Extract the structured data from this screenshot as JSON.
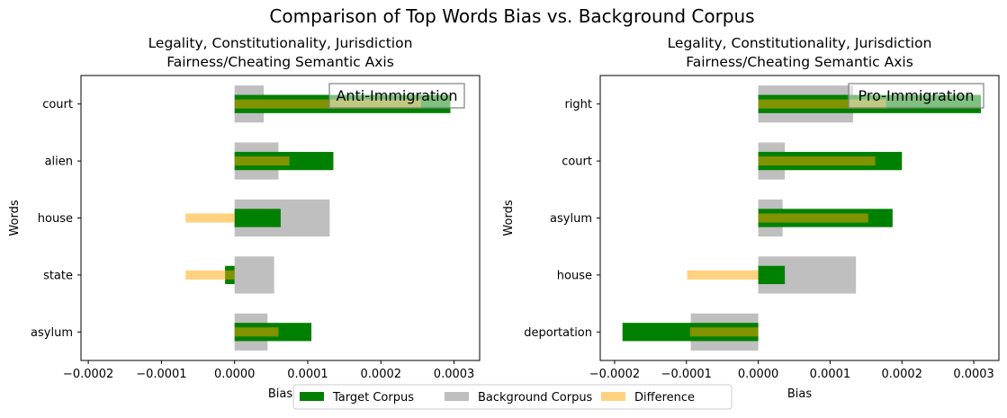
{
  "figure": {
    "suptitle": "Comparison of Top Words Bias vs. Background Corpus"
  },
  "legend": {
    "entries": [
      {
        "label": "Target Corpus",
        "color": "#008000",
        "opacity": 1
      },
      {
        "label": "Background Corpus",
        "color": "#808080",
        "opacity": 0.5
      },
      {
        "label": "Difference",
        "color": "#FFA500",
        "opacity": 0.5
      }
    ],
    "placement": "lower-center"
  },
  "chart_data": [
    {
      "type": "bar",
      "orientation": "horizontal",
      "title": "Legality, Constitutionality, Jurisdiction\nFairness/Cheating Semantic Axis",
      "annotation": "Anti-Immigration",
      "xlabel": "Bias",
      "ylabel": "Words",
      "xlim": [
        -0.00021,
        0.000335
      ],
      "xticks": [
        -0.0002,
        -0.0001,
        0.0,
        0.0001,
        0.0002,
        0.0003
      ],
      "xtick_labels": [
        "−0.0002",
        "−0.0001",
        "0.0000",
        "0.0001",
        "0.0002",
        "0.0003"
      ],
      "categories": [
        "court",
        "alien",
        "house",
        "state",
        "asylum"
      ],
      "series": [
        {
          "name": "Target Corpus",
          "values": [
            0.000295,
            0.000135,
            6.3e-05,
            -1.3e-05,
            0.000105
          ]
        },
        {
          "name": "Background Corpus",
          "values": [
            4e-05,
            6e-05,
            0.00013,
            5.4e-05,
            4.5e-05
          ]
        },
        {
          "name": "Difference",
          "values": [
            0.000255,
            7.5e-05,
            -6.7e-05,
            -6.7e-05,
            6e-05
          ]
        }
      ],
      "grid": false
    },
    {
      "type": "bar",
      "orientation": "horizontal",
      "title": "Legality, Constitutionality, Jurisdiction\nFairness/Cheating Semantic Axis",
      "annotation": "Pro-Immigration",
      "xlabel": "Bias",
      "ylabel": "Words",
      "xlim": [
        -0.00022,
        0.000335
      ],
      "xticks": [
        -0.0002,
        -0.0001,
        0.0,
        0.0001,
        0.0002,
        0.0003
      ],
      "xtick_labels": [
        "−0.0002",
        "−0.0001",
        "0.0000",
        "0.0001",
        "0.0002",
        "0.0003"
      ],
      "categories": [
        "right",
        "court",
        "asylum",
        "house",
        "deportation"
      ],
      "series": [
        {
          "name": "Target Corpus",
          "values": [
            0.00031,
            0.0002,
            0.000187,
            3.7e-05,
            -0.000189
          ]
        },
        {
          "name": "Background Corpus",
          "values": [
            0.000132,
            3.7e-05,
            3.4e-05,
            0.000136,
            -9.4e-05
          ]
        },
        {
          "name": "Difference",
          "values": [
            0.000178,
            0.000163,
            0.000153,
            -9.9e-05,
            -9.5e-05
          ]
        }
      ],
      "grid": false
    }
  ]
}
